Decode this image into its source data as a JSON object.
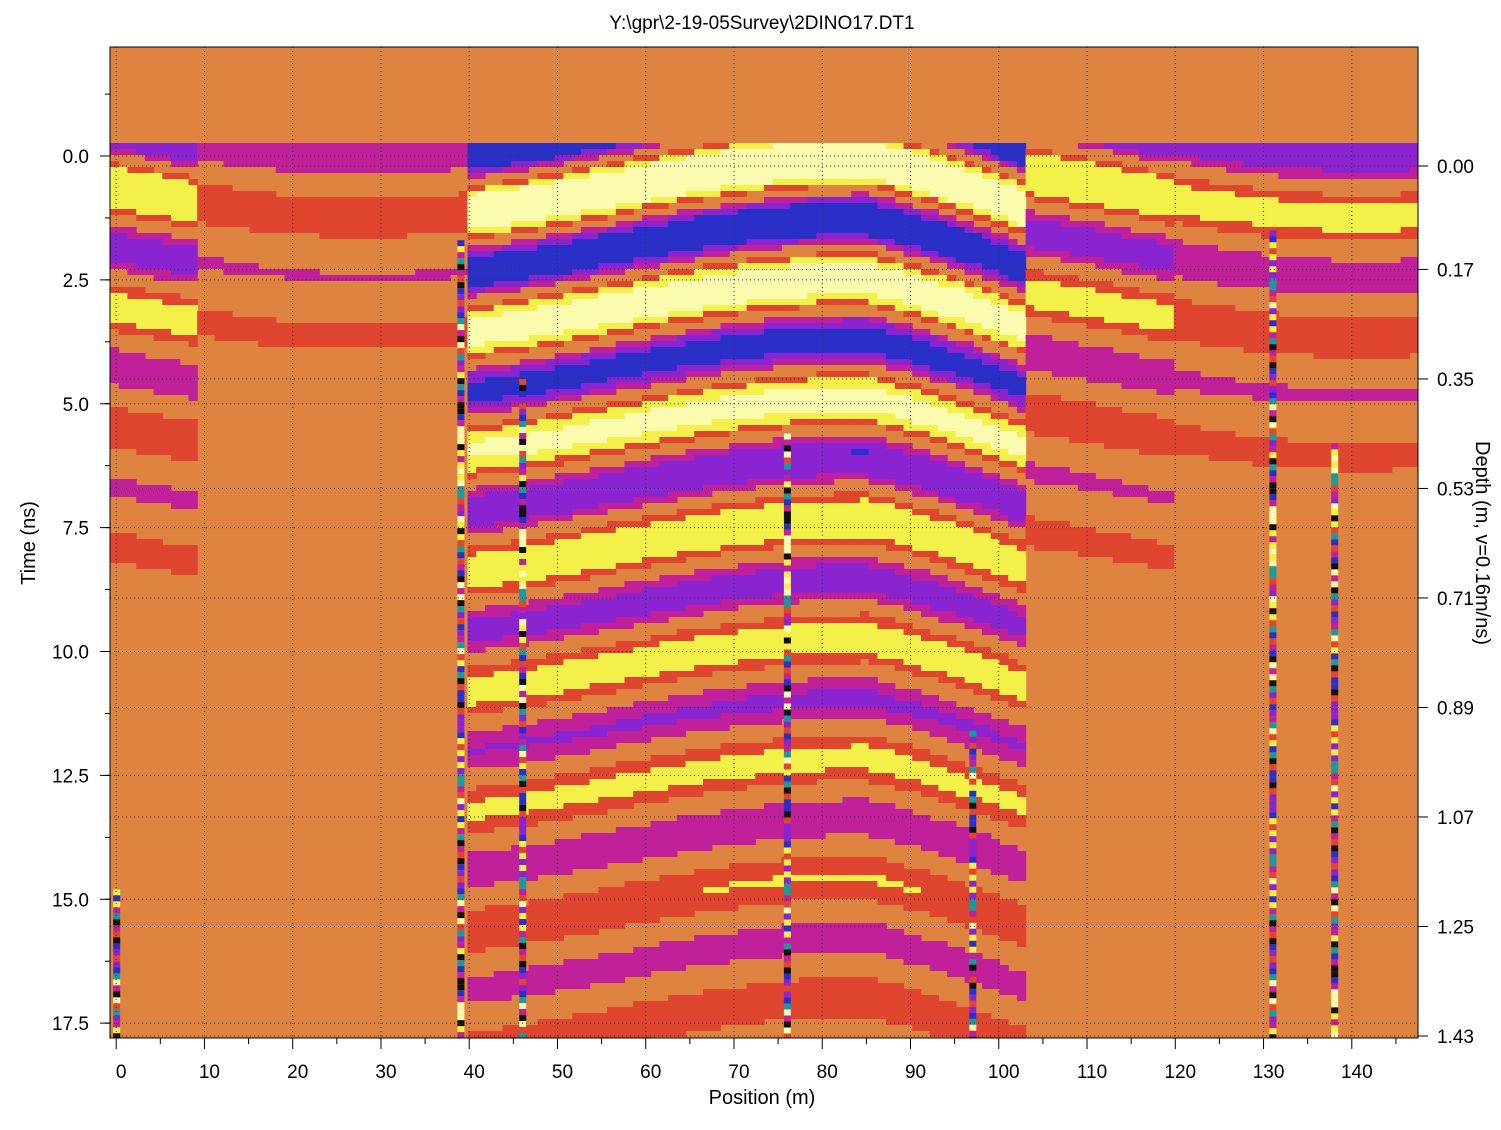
{
  "chart_data": {
    "type": "heatmap",
    "title": "Y:\\gpr\\2-19-05Survey\\2DINO17.DT1",
    "xlabel": "Position (m)",
    "ylabel": "Time (ns)",
    "y2label": "Depth (m, v=0.16m/ns)",
    "xlim": [
      -0.7,
      147.5
    ],
    "ylim": [
      -2.2,
      17.8
    ],
    "y2lim": [
      0.0,
      1.43
    ],
    "grid": true,
    "x_ticks": [
      "0",
      "10",
      "20",
      "30",
      "40",
      "50",
      "60",
      "70",
      "80",
      "90",
      "100",
      "110",
      "120",
      "130",
      "140"
    ],
    "y_ticks": [
      "0.0",
      "2.5",
      "5.0",
      "7.5",
      "10.0",
      "12.5",
      "15.0",
      "17.5"
    ],
    "y2_ticks": [
      "0.00",
      "0.17",
      "0.35",
      "0.53",
      "0.71",
      "0.89",
      "1.07",
      "1.25",
      "1.43"
    ],
    "colormap": [
      "#d9803f",
      "#e0452f",
      "#c0209a",
      "#8a24d0",
      "#2a2fc8",
      "#1a9a9a",
      "#101010",
      "#f4f04a",
      "#fbfbb0"
    ],
    "background_color": "#de8440",
    "noise_traces_m": [
      0,
      39,
      46,
      76,
      97,
      131,
      138
    ]
  }
}
